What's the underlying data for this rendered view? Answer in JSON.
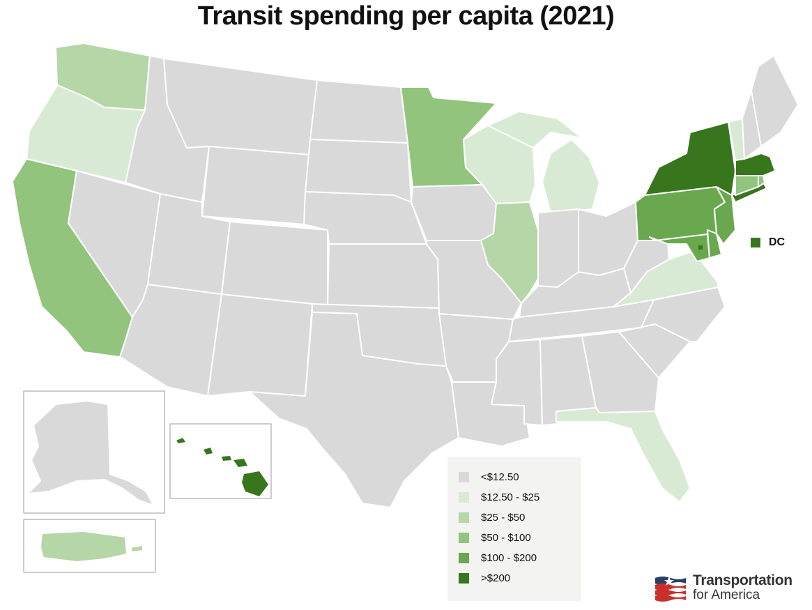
{
  "title": "Transit spending per capita (2021)",
  "legend": {
    "items": [
      {
        "label": "<$12.50",
        "color": "#d9d9d9"
      },
      {
        "label": "$12.50 - $25",
        "color": "#d9ead4"
      },
      {
        "label": "$25 - $50",
        "color": "#b5d6a6"
      },
      {
        "label": "$50 - $100",
        "color": "#93c47d"
      },
      {
        "label": "$100 - $200",
        "color": "#6aa84f"
      },
      {
        "label": ">$200",
        "color": "#38761d"
      }
    ]
  },
  "dc_marker": {
    "label": "DC",
    "color": "#38761d"
  },
  "brand": {
    "line1": "Transportation",
    "line2": "for America",
    "logo_icon": "flag-logo-icon"
  },
  "map_data": {
    "type": "choropleth",
    "regions": [
      {
        "name": "Washington",
        "bin": "$25 - $50"
      },
      {
        "name": "Oregon",
        "bin": "$12.50 - $25"
      },
      {
        "name": "California",
        "bin": "$50 - $100"
      },
      {
        "name": "Minnesota",
        "bin": "$50 - $100"
      },
      {
        "name": "Wisconsin",
        "bin": "$12.50 - $25"
      },
      {
        "name": "Michigan",
        "bin": "$12.50 - $25"
      },
      {
        "name": "Illinois",
        "bin": "$25 - $50"
      },
      {
        "name": "Florida",
        "bin": "$12.50 - $25"
      },
      {
        "name": "Virginia",
        "bin": "$12.50 - $25"
      },
      {
        "name": "Vermont",
        "bin": "$12.50 - $25"
      },
      {
        "name": "Pennsylvania",
        "bin": "$100 - $200"
      },
      {
        "name": "Maryland",
        "bin": "$100 - $200"
      },
      {
        "name": "Delaware",
        "bin": "$100 - $200"
      },
      {
        "name": "New Jersey",
        "bin": "$100 - $200"
      },
      {
        "name": "Connecticut",
        "bin": "$50 - $100"
      },
      {
        "name": "Rhode Island",
        "bin": "$50 - $100"
      },
      {
        "name": "New York",
        "bin": ">$200"
      },
      {
        "name": "Massachusetts",
        "bin": ">$200"
      },
      {
        "name": "Hawaii",
        "bin": ">$200"
      },
      {
        "name": "District of Columbia",
        "bin": ">$200"
      },
      {
        "name": "Puerto Rico",
        "bin": "$25 - $50"
      },
      {
        "name": "Alaska",
        "bin": "<$12.50"
      },
      {
        "name": "Idaho",
        "bin": "<$12.50"
      },
      {
        "name": "Montana",
        "bin": "<$12.50"
      },
      {
        "name": "Wyoming",
        "bin": "<$12.50"
      },
      {
        "name": "Nevada",
        "bin": "<$12.50"
      },
      {
        "name": "Utah",
        "bin": "<$12.50"
      },
      {
        "name": "Colorado",
        "bin": "<$12.50"
      },
      {
        "name": "Arizona",
        "bin": "<$12.50"
      },
      {
        "name": "New Mexico",
        "bin": "<$12.50"
      },
      {
        "name": "North Dakota",
        "bin": "<$12.50"
      },
      {
        "name": "South Dakota",
        "bin": "<$12.50"
      },
      {
        "name": "Nebraska",
        "bin": "<$12.50"
      },
      {
        "name": "Kansas",
        "bin": "<$12.50"
      },
      {
        "name": "Oklahoma",
        "bin": "<$12.50"
      },
      {
        "name": "Texas",
        "bin": "<$12.50"
      },
      {
        "name": "Iowa",
        "bin": "<$12.50"
      },
      {
        "name": "Missouri",
        "bin": "<$12.50"
      },
      {
        "name": "Arkansas",
        "bin": "<$12.50"
      },
      {
        "name": "Louisiana",
        "bin": "<$12.50"
      },
      {
        "name": "Mississippi",
        "bin": "<$12.50"
      },
      {
        "name": "Alabama",
        "bin": "<$12.50"
      },
      {
        "name": "Georgia",
        "bin": "<$12.50"
      },
      {
        "name": "South Carolina",
        "bin": "<$12.50"
      },
      {
        "name": "North Carolina",
        "bin": "<$12.50"
      },
      {
        "name": "Tennessee",
        "bin": "<$12.50"
      },
      {
        "name": "Kentucky",
        "bin": "<$12.50"
      },
      {
        "name": "Indiana",
        "bin": "<$12.50"
      },
      {
        "name": "Ohio",
        "bin": "<$12.50"
      },
      {
        "name": "West Virginia",
        "bin": "<$12.50"
      },
      {
        "name": "New Hampshire",
        "bin": "<$12.50"
      },
      {
        "name": "Maine",
        "bin": "<$12.50"
      }
    ]
  }
}
